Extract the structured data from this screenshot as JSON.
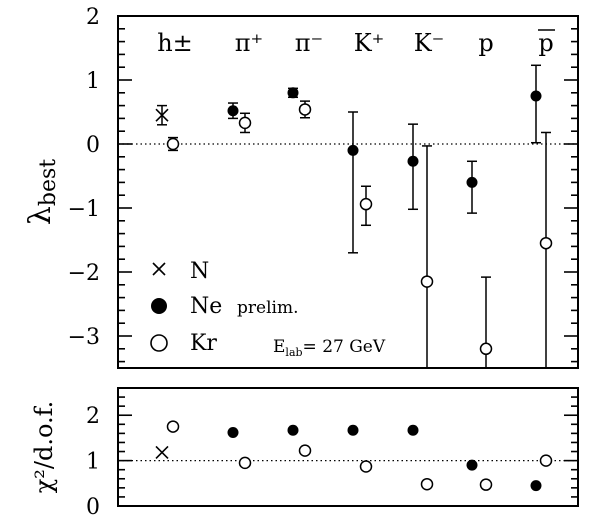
{
  "chart_data": [
    {
      "type": "scatter",
      "ylabel": "λ",
      "ylabel_sub": "best",
      "ylim": [
        -3.5,
        2
      ],
      "yticks": [
        "2",
        "1",
        "0",
        "−1",
        "−2",
        "−3"
      ],
      "grid": false,
      "reference_line": 0,
      "categories": [
        "h±",
        "π⁺",
        "π⁻",
        "K⁺",
        "K⁻",
        "p",
        "p"
      ],
      "overline_category_index": 6,
      "series": [
        {
          "name": "N",
          "marker": "cross",
          "points": [
            {
              "category": "h±",
              "y": 0.45,
              "yerr_low": 0.15,
              "yerr_high": 0.15
            }
          ]
        },
        {
          "name": "Ne",
          "marker": "filled-circle",
          "points": [
            {
              "category": "π⁺",
              "y": 0.52,
              "yerr_low": 0.12,
              "yerr_high": 0.12
            },
            {
              "category": "π⁻",
              "y": 0.8,
              "yerr_low": 0.07,
              "yerr_high": 0.07
            },
            {
              "category": "K⁺",
              "y": -0.1,
              "yerr_low": 1.6,
              "yerr_high": 0.6
            },
            {
              "category": "K⁻",
              "y": -0.27,
              "yerr_low": 0.75,
              "yerr_high": 0.58
            },
            {
              "category": "p",
              "y": -0.6,
              "yerr_low": 0.48,
              "yerr_high": 0.33
            },
            {
              "category": "p",
              "y": 0.75,
              "yerr_low": 0.73,
              "yerr_high": 0.48
            }
          ]
        },
        {
          "name": "Kr",
          "marker": "open-circle",
          "points": [
            {
              "category": "h±",
              "y": 0.0,
              "yerr_low": 0.1,
              "yerr_high": 0.1
            },
            {
              "category": "π⁺",
              "y": 0.33,
              "yerr_low": 0.15,
              "yerr_high": 0.15
            },
            {
              "category": "π⁻",
              "y": 0.54,
              "yerr_low": 0.13,
              "yerr_high": 0.13
            },
            {
              "category": "K⁺",
              "y": -0.94,
              "yerr_low": 0.33,
              "yerr_high": 0.28
            },
            {
              "category": "K⁻",
              "y": -2.15,
              "yerr_low": 1.4,
              "yerr_high": 2.12
            },
            {
              "category": "p",
              "y": -3.2,
              "yerr_low": 0.3,
              "yerr_high": 1.12
            },
            {
              "category": "p",
              "y": -1.55,
              "yerr_low": 1.95,
              "yerr_high": 1.73
            }
          ]
        }
      ],
      "legend": {
        "placement": "bottom-left",
        "entries": [
          {
            "symbol": "cross",
            "label": "N"
          },
          {
            "symbol": "filled-circle",
            "label": "Ne",
            "note": "prelim."
          },
          {
            "symbol": "open-circle",
            "label": "Kr"
          }
        ]
      },
      "annotation": {
        "main": "E",
        "sub": "lab",
        "rest": "= 27 GeV"
      }
    },
    {
      "type": "scatter",
      "ylabel": "χ²/d.o.f.",
      "ylim": [
        0,
        2.6
      ],
      "yticks": [
        "2",
        "1",
        "0"
      ],
      "grid": false,
      "reference_line": 1,
      "categories": [
        "h±",
        "π⁺",
        "π⁻",
        "K⁺",
        "K⁻",
        "p",
        "p"
      ],
      "series": [
        {
          "name": "N",
          "marker": "cross",
          "points": [
            {
              "category": "h±",
              "y": 1.18
            }
          ]
        },
        {
          "name": "Ne",
          "marker": "filled-circle",
          "points": [
            {
              "category": "π⁺",
              "y": 1.62
            },
            {
              "category": "π⁻",
              "y": 1.67
            },
            {
              "category": "K⁺",
              "y": 1.67
            },
            {
              "category": "K⁻",
              "y": 1.67
            },
            {
              "category": "p",
              "y": 0.9
            },
            {
              "category": "p",
              "y": 0.45
            }
          ]
        },
        {
          "name": "Kr",
          "marker": "open-circle",
          "points": [
            {
              "category": "h±",
              "y": 1.75
            },
            {
              "category": "π⁺",
              "y": 0.95
            },
            {
              "category": "π⁻",
              "y": 1.22
            },
            {
              "category": "K⁺",
              "y": 0.87
            },
            {
              "category": "K⁻",
              "y": 0.48
            },
            {
              "category": "p",
              "y": 0.47
            },
            {
              "category": "p",
              "y": 1.0
            }
          ]
        }
      ]
    }
  ]
}
